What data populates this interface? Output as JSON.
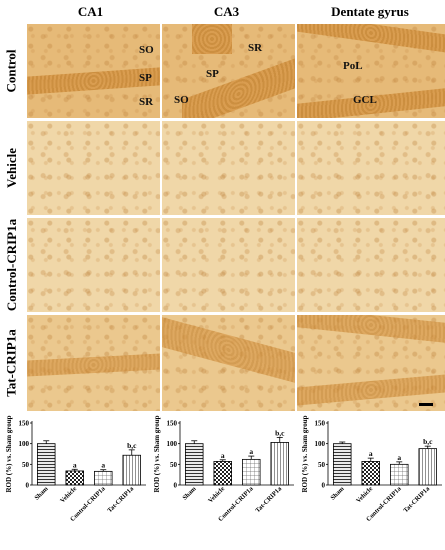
{
  "columns": [
    "CA1",
    "CA3",
    "Dentate gyrus"
  ],
  "rows": [
    "Control",
    "Vehicle",
    "Control-CRIP1a",
    "Tat-CRIP1a"
  ],
  "panel_labels": {
    "ca1": [
      "SO",
      "SP",
      "SR"
    ],
    "ca3": [
      "SR",
      "SP",
      "SO"
    ],
    "dg": [
      "PoL",
      "GCL"
    ]
  },
  "colors": {
    "stain": "#e6ba78",
    "stain_dark": "#c98a3a",
    "bar_border": "#000000"
  },
  "chart_data": [
    {
      "type": "bar",
      "categories": [
        "Sham",
        "Vehicle",
        "Control-CRIP1a",
        "Tat-CRIP1a"
      ],
      "values": [
        100,
        34,
        33,
        72
      ],
      "errors": [
        7,
        4,
        4,
        13
      ],
      "annotations": [
        "",
        "a",
        "a",
        "b,c"
      ],
      "ylabel": "ROD (%) vs. Sham group",
      "ylim": [
        0,
        150
      ],
      "yticks": [
        "0",
        "50",
        "100",
        "150"
      ],
      "patterns": [
        "hlines",
        "checker",
        "grid",
        "vlines"
      ]
    },
    {
      "type": "bar",
      "categories": [
        "Sham",
        "Vehicle",
        "Control-CRIP1a",
        "Tat-CRIP1a"
      ],
      "values": [
        100,
        57,
        62,
        103
      ],
      "errors": [
        7,
        4,
        8,
        12
      ],
      "annotations": [
        "",
        "a",
        "a",
        "b,c"
      ],
      "ylabel": "ROD (%) vs. Sham group",
      "ylim": [
        0,
        150
      ],
      "yticks": [
        "0",
        "50",
        "100",
        "150"
      ],
      "patterns": [
        "hlines",
        "checker",
        "grid",
        "vlines"
      ]
    },
    {
      "type": "bar",
      "categories": [
        "Sham",
        "Vehicle",
        "Control-CRIP1a",
        "Tat-CRIP1a"
      ],
      "values": [
        100,
        57,
        50,
        88
      ],
      "errors": [
        4,
        8,
        6,
        6
      ],
      "annotations": [
        "",
        "a",
        "a",
        "b,c"
      ],
      "ylabel": "ROD (%) vs. Sham group",
      "ylim": [
        0,
        150
      ],
      "yticks": [
        "0",
        "50",
        "100",
        "150"
      ],
      "patterns": [
        "hlines",
        "checker",
        "grid",
        "vlines"
      ]
    }
  ]
}
